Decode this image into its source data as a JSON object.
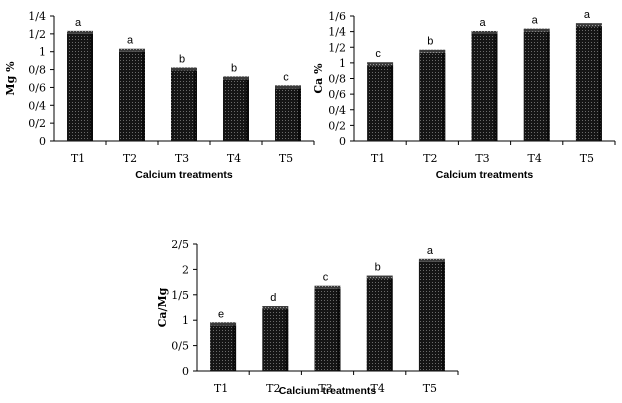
{
  "chart_data": [
    {
      "type": "bar",
      "categories": [
        "T1",
        "T2",
        "T3",
        "T4",
        "T5"
      ],
      "values": [
        1.2,
        1.0,
        0.79,
        0.69,
        0.59
      ],
      "letters": [
        "a",
        "a",
        "b",
        "b",
        "c"
      ],
      "ylabel": "Mg %",
      "xlabel": "Calcium treatments",
      "ylim": [
        0,
        1.4
      ],
      "yticks": [
        "0",
        "0/2",
        "0/4",
        "0/6",
        "0/8",
        "1",
        "1/2",
        "1/4"
      ],
      "ytick_values": [
        0,
        0.2,
        0.4,
        0.6,
        0.8,
        1.0,
        1.2,
        1.4
      ],
      "grid": false
    },
    {
      "type": "bar",
      "categories": [
        "T1",
        "T2",
        "T3",
        "T4",
        "T5"
      ],
      "values": [
        0.97,
        1.13,
        1.37,
        1.4,
        1.47
      ],
      "letters": [
        "c",
        "b",
        "a",
        "a",
        "a"
      ],
      "ylabel": "Ca %",
      "xlabel": "Calcium treatments",
      "ylim": [
        0,
        1.6
      ],
      "yticks": [
        "0",
        "0/2",
        "0/4",
        "0/6",
        "0/8",
        "1",
        "1/2",
        "1/4",
        "1/6"
      ],
      "ytick_values": [
        0,
        0.2,
        0.4,
        0.6,
        0.8,
        1.0,
        1.2,
        1.4,
        1.6
      ],
      "grid": false
    },
    {
      "type": "bar",
      "categories": [
        "T1",
        "T2",
        "T3",
        "T4",
        "T5"
      ],
      "values": [
        0.9,
        1.22,
        1.62,
        1.82,
        2.15
      ],
      "letters": [
        "e",
        "d",
        "c",
        "b",
        "a"
      ],
      "ylabel": "Ca/Mg",
      "xlabel": "Calcium treatments",
      "ylim": [
        0,
        2.5
      ],
      "yticks": [
        "0",
        "0/5",
        "1",
        "1/5",
        "2",
        "2/5"
      ],
      "ytick_values": [
        0,
        0.5,
        1.0,
        1.5,
        2.0,
        2.5
      ],
      "grid": false
    }
  ]
}
